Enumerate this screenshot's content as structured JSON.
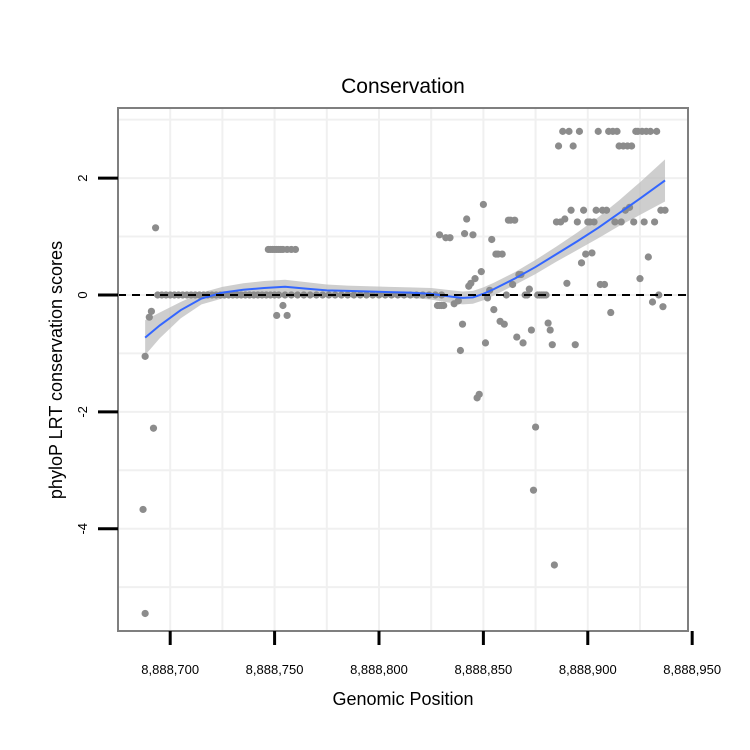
{
  "chart_data": {
    "type": "scatter",
    "title": "Conservation",
    "xlabel": "Genomic Position",
    "ylabel": "phyloP LRT conservation scores",
    "xlim": [
      8888675,
      8888948
    ],
    "ylim": [
      -5.75,
      3.2
    ],
    "xticks": [
      8888700,
      8888750,
      8888800,
      8888850,
      8888900,
      8888950
    ],
    "xtick_labels": [
      "8,888,700",
      "8,888,750",
      "8,888,800",
      "8,888,850",
      "8,888,900",
      "8,888,950"
    ],
    "yticks": [
      2,
      0,
      -2,
      -4
    ],
    "ytick_labels": [
      "2",
      "0",
      "-2",
      "-4"
    ],
    "reference_line": 0,
    "grid": true,
    "colors": {
      "points": "#8c8c8c",
      "smooth": "#3366ff",
      "band": "#bdbdbd",
      "panel_border": "#7f7f7f",
      "grid": "#f0f0f0"
    },
    "points": [
      [
        8888687,
        -3.67
      ],
      [
        8888688,
        -1.05
      ],
      [
        8888688,
        -5.45
      ],
      [
        8888690,
        -0.38
      ],
      [
        8888691,
        -0.28
      ],
      [
        8888692,
        -2.28
      ],
      [
        8888693,
        1.15
      ],
      [
        8888694,
        0.0
      ],
      [
        8888696,
        0.0
      ],
      [
        8888698,
        0.0
      ],
      [
        8888700,
        0.0
      ],
      [
        8888702,
        0.0
      ],
      [
        8888704,
        0.0
      ],
      [
        8888706,
        0.0
      ],
      [
        8888708,
        0.0
      ],
      [
        8888710,
        0.0
      ],
      [
        8888712,
        0.0
      ],
      [
        8888714,
        0.0
      ],
      [
        8888716,
        0.0
      ],
      [
        8888718,
        0.0
      ],
      [
        8888720,
        0.0
      ],
      [
        8888722,
        0.0
      ],
      [
        8888724,
        0.0
      ],
      [
        8888726,
        0.0
      ],
      [
        8888728,
        0.0
      ],
      [
        8888730,
        0.0
      ],
      [
        8888732,
        0.0
      ],
      [
        8888734,
        0.0
      ],
      [
        8888736,
        0.0
      ],
      [
        8888738,
        0.0
      ],
      [
        8888740,
        0.0
      ],
      [
        8888742,
        0.0
      ],
      [
        8888744,
        0.0
      ],
      [
        8888746,
        0.0
      ],
      [
        8888748,
        0.0
      ],
      [
        8888750,
        0.0
      ],
      [
        8888747,
        0.78
      ],
      [
        8888748,
        0.78
      ],
      [
        8888749,
        0.78
      ],
      [
        8888750,
        0.78
      ],
      [
        8888751,
        0.78
      ],
      [
        8888752,
        0.78
      ],
      [
        8888753,
        0.78
      ],
      [
        8888754,
        0.78
      ],
      [
        8888756,
        0.78
      ],
      [
        8888758,
        0.78
      ],
      [
        8888760,
        0.78
      ],
      [
        8888751,
        -0.35
      ],
      [
        8888754,
        -0.18
      ],
      [
        8888756,
        -0.35
      ],
      [
        8888752,
        0.0
      ],
      [
        8888755,
        0.0
      ],
      [
        8888758,
        0.0
      ],
      [
        8888761,
        0.0
      ],
      [
        8888764,
        0.0
      ],
      [
        8888767,
        0.0
      ],
      [
        8888770,
        0.0
      ],
      [
        8888773,
        0.0
      ],
      [
        8888776,
        0.0
      ],
      [
        8888779,
        0.0
      ],
      [
        8888782,
        0.0
      ],
      [
        8888785,
        0.0
      ],
      [
        8888788,
        0.0
      ],
      [
        8888791,
        0.0
      ],
      [
        8888794,
        0.0
      ],
      [
        8888797,
        0.0
      ],
      [
        8888800,
        0.0
      ],
      [
        8888803,
        0.0
      ],
      [
        8888806,
        0.0
      ],
      [
        8888809,
        0.0
      ],
      [
        8888812,
        0.0
      ],
      [
        8888815,
        0.0
      ],
      [
        8888818,
        0.0
      ],
      [
        8888821,
        0.0
      ],
      [
        8888824,
        0.0
      ],
      [
        8888827,
        0.0
      ],
      [
        8888830,
        0.0
      ],
      [
        8888828,
        -0.18
      ],
      [
        8888829,
        -0.18
      ],
      [
        8888830,
        -0.18
      ],
      [
        8888831,
        -0.18
      ],
      [
        8888829,
        1.03
      ],
      [
        8888832,
        0.98
      ],
      [
        8888834,
        0.98
      ],
      [
        8888836,
        -0.15
      ],
      [
        8888838,
        -0.1
      ],
      [
        8888839,
        -0.95
      ],
      [
        8888840,
        -0.5
      ],
      [
        8888841,
        1.05
      ],
      [
        8888842,
        1.3
      ],
      [
        8888843,
        0.15
      ],
      [
        8888844,
        0.2
      ],
      [
        8888845,
        1.03
      ],
      [
        8888846,
        0.28
      ],
      [
        8888847,
        -1.76
      ],
      [
        8888848,
        -1.7
      ],
      [
        8888849,
        0.4
      ],
      [
        8888850,
        1.55
      ],
      [
        8888851,
        -0.82
      ],
      [
        8888852,
        -0.05
      ],
      [
        8888853,
        0.08
      ],
      [
        8888854,
        0.95
      ],
      [
        8888855,
        -0.25
      ],
      [
        8888856,
        0.7
      ],
      [
        8888857,
        0.7
      ],
      [
        8888858,
        -0.45
      ],
      [
        8888859,
        0.7
      ],
      [
        8888860,
        -0.5
      ],
      [
        8888861,
        0.0
      ],
      [
        8888862,
        1.28
      ],
      [
        8888863,
        1.28
      ],
      [
        8888864,
        0.18
      ],
      [
        8888865,
        1.28
      ],
      [
        8888866,
        -0.72
      ],
      [
        8888867,
        0.35
      ],
      [
        8888868,
        0.35
      ],
      [
        8888869,
        -0.82
      ],
      [
        8888870,
        0.0
      ],
      [
        8888871,
        0.0
      ],
      [
        8888872,
        0.1
      ],
      [
        8888873,
        -0.6
      ],
      [
        8888874,
        -3.34
      ],
      [
        8888875,
        -2.26
      ],
      [
        8888876,
        0.0
      ],
      [
        8888877,
        0.0
      ],
      [
        8888878,
        0.0
      ],
      [
        8888879,
        0.0
      ],
      [
        8888880,
        0.0
      ],
      [
        8888881,
        -0.48
      ],
      [
        8888882,
        -0.6
      ],
      [
        8888883,
        -0.85
      ],
      [
        8888884,
        -4.62
      ],
      [
        8888885,
        1.25
      ],
      [
        8888886,
        2.55
      ],
      [
        8888887,
        1.25
      ],
      [
        8888888,
        2.8
      ],
      [
        8888889,
        1.3
      ],
      [
        8888890,
        0.2
      ],
      [
        8888891,
        2.8
      ],
      [
        8888892,
        1.45
      ],
      [
        8888893,
        2.55
      ],
      [
        8888894,
        -0.85
      ],
      [
        8888895,
        1.25
      ],
      [
        8888896,
        2.8
      ],
      [
        8888897,
        0.55
      ],
      [
        8888898,
        1.45
      ],
      [
        8888899,
        0.7
      ],
      [
        8888900,
        1.25
      ],
      [
        8888901,
        1.25
      ],
      [
        8888902,
        0.72
      ],
      [
        8888903,
        1.25
      ],
      [
        8888904,
        1.45
      ],
      [
        8888905,
        2.8
      ],
      [
        8888906,
        0.18
      ],
      [
        8888907,
        1.45
      ],
      [
        8888908,
        0.18
      ],
      [
        8888909,
        1.45
      ],
      [
        8888910,
        2.8
      ],
      [
        8888911,
        -0.3
      ],
      [
        8888912,
        2.8
      ],
      [
        8888913,
        1.25
      ],
      [
        8888914,
        2.8
      ],
      [
        8888915,
        2.55
      ],
      [
        8888916,
        1.25
      ],
      [
        8888917,
        2.55
      ],
      [
        8888918,
        1.45
      ],
      [
        8888919,
        2.55
      ],
      [
        8888920,
        1.5
      ],
      [
        8888921,
        2.55
      ],
      [
        8888922,
        1.25
      ],
      [
        8888923,
        2.8
      ],
      [
        8888924,
        2.8
      ],
      [
        8888925,
        0.28
      ],
      [
        8888926,
        2.8
      ],
      [
        8888927,
        1.25
      ],
      [
        8888928,
        2.8
      ],
      [
        8888929,
        0.65
      ],
      [
        8888930,
        2.8
      ],
      [
        8888931,
        -0.12
      ],
      [
        8888932,
        1.25
      ],
      [
        8888933,
        2.8
      ],
      [
        8888934,
        0.0
      ],
      [
        8888935,
        1.45
      ],
      [
        8888936,
        -0.2
      ],
      [
        8888937,
        1.45
      ]
    ],
    "smooth": [
      [
        8888688,
        -0.73,
        0.3
      ],
      [
        8888695,
        -0.52,
        0.22
      ],
      [
        8888705,
        -0.26,
        0.14
      ],
      [
        8888715,
        -0.06,
        0.1
      ],
      [
        8888725,
        0.04,
        0.1
      ],
      [
        8888735,
        0.09,
        0.11
      ],
      [
        8888745,
        0.12,
        0.12
      ],
      [
        8888755,
        0.14,
        0.12
      ],
      [
        8888765,
        0.11,
        0.11
      ],
      [
        8888775,
        0.08,
        0.1
      ],
      [
        8888785,
        0.07,
        0.09
      ],
      [
        8888795,
        0.06,
        0.09
      ],
      [
        8888805,
        0.05,
        0.09
      ],
      [
        8888815,
        0.04,
        0.09
      ],
      [
        8888825,
        0.02,
        0.1
      ],
      [
        8888835,
        -0.03,
        0.11
      ],
      [
        8888840,
        -0.05,
        0.11
      ],
      [
        8888845,
        -0.04,
        0.11
      ],
      [
        8888850,
        0.02,
        0.11
      ],
      [
        8888855,
        0.1,
        0.11
      ],
      [
        8888865,
        0.28,
        0.11
      ],
      [
        8888875,
        0.48,
        0.12
      ],
      [
        8888885,
        0.7,
        0.13
      ],
      [
        8888895,
        0.92,
        0.15
      ],
      [
        8888905,
        1.15,
        0.18
      ],
      [
        8888915,
        1.4,
        0.22
      ],
      [
        8888925,
        1.65,
        0.28
      ],
      [
        8888937,
        1.96,
        0.36
      ]
    ]
  }
}
